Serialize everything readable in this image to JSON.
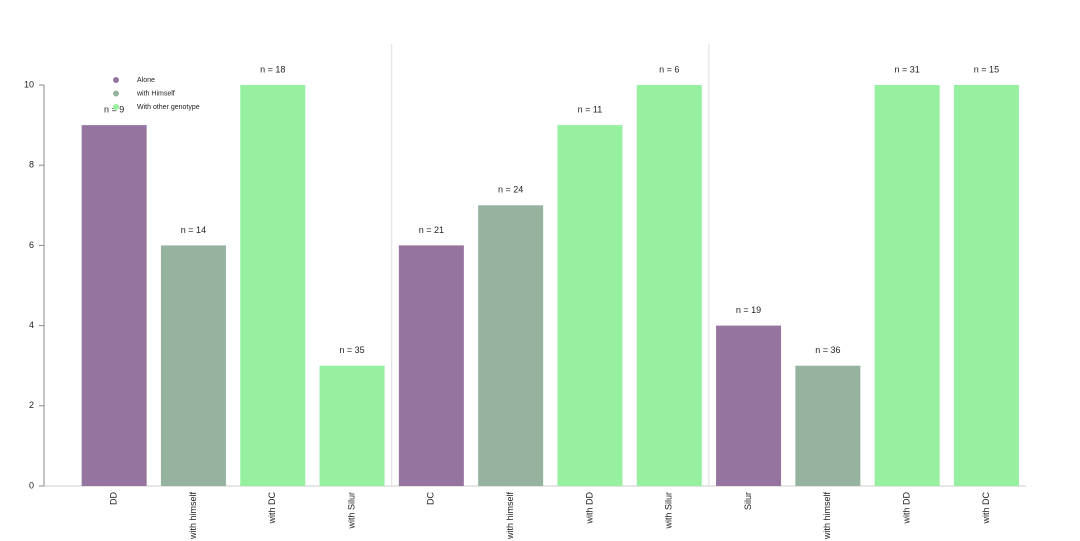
{
  "chart_data": {
    "type": "bar",
    "categories": [
      "DD",
      "with himself",
      "with DC",
      "with Silur",
      "DC",
      "with himself",
      "with DD",
      "with Silur",
      "Silur",
      "with himself",
      "with DD",
      "with DC"
    ],
    "series": [
      {
        "name": "Alone",
        "color": "#9575a0",
        "values": [
          9,
          null,
          null,
          null,
          6,
          null,
          null,
          null,
          4,
          null,
          null,
          null
        ]
      },
      {
        "name": "with Himself",
        "color": "#96b3a0",
        "values": [
          null,
          6,
          null,
          null,
          null,
          7,
          null,
          null,
          null,
          3,
          null,
          null
        ]
      },
      {
        "name": "With other genotype",
        "color": "#96f0a0",
        "values": [
          null,
          null,
          10,
          3,
          null,
          null,
          9,
          10,
          null,
          null,
          10,
          10
        ]
      }
    ],
    "annotations": [
      "n = 9",
      "n = 14",
      "n = 18",
      "n = 35",
      "n = 21",
      "n = 24",
      "n = 11",
      "n = 6",
      "n = 19",
      "n = 36",
      "n = 31",
      "n = 15"
    ],
    "ylim": [
      0,
      10
    ],
    "yticks": [
      0,
      2,
      4,
      6,
      8,
      10
    ],
    "group_size": 4,
    "legend": "upper-left"
  }
}
